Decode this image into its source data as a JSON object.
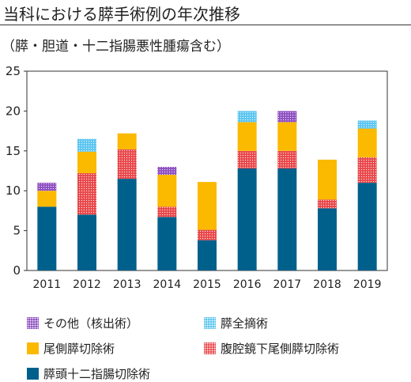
{
  "title": "当科における膵手術例の年次推移",
  "subtitle": "（膵・胆道・十二指腸悪性腫瘍含む）",
  "chart_data": {
    "type": "bar",
    "stacked": true,
    "categories": [
      "2011",
      "2012",
      "2013",
      "2014",
      "2015",
      "2016",
      "2017",
      "2018",
      "2019"
    ],
    "ylim": [
      0,
      25
    ],
    "yticks": [
      0,
      5,
      10,
      15,
      20,
      25
    ],
    "grid": false,
    "legend_position": "bottom",
    "series": [
      {
        "name": "膵頭十二指腸切除術",
        "color": "#00608c",
        "pattern": "solid",
        "values": [
          8,
          7,
          11.5,
          6.7,
          3.8,
          12.8,
          12.8,
          7.8,
          11
        ]
      },
      {
        "name": "腹腔鏡下尾側膵切除術",
        "color": "#e8474a",
        "pattern": "dots",
        "values": [
          0,
          5.2,
          3.7,
          1.3,
          1.3,
          2.2,
          2.2,
          1.1,
          3.2
        ]
      },
      {
        "name": "尾側膵切除術",
        "color": "#fbb900",
        "pattern": "solid",
        "values": [
          2,
          2.7,
          2,
          4,
          6,
          3.6,
          3.6,
          5,
          3.6
        ]
      },
      {
        "name": "膵全摘術",
        "color": "#5bc5f0",
        "pattern": "dots",
        "values": [
          0,
          1.6,
          0,
          0,
          0,
          1.4,
          0,
          0,
          1
        ]
      },
      {
        "name": "その他（核出術）",
        "color": "#8e4fc1",
        "pattern": "dots",
        "values": [
          1,
          0,
          0,
          1,
          0,
          0,
          1.4,
          0,
          0
        ]
      }
    ]
  },
  "legend": [
    {
      "label": "その他（核出術）",
      "color": "#8e4fc1",
      "pattern": "dots"
    },
    {
      "label": "膵全摘術",
      "color": "#5bc5f0",
      "pattern": "dots"
    },
    {
      "label": "尾側膵切除術",
      "color": "#fbb900",
      "pattern": "solid"
    },
    {
      "label": "腹腔鏡下尾側膵切除術",
      "color": "#e8474a",
      "pattern": "dots"
    },
    {
      "label": "膵頭十二指腸切除術",
      "color": "#00608c",
      "pattern": "solid"
    }
  ]
}
